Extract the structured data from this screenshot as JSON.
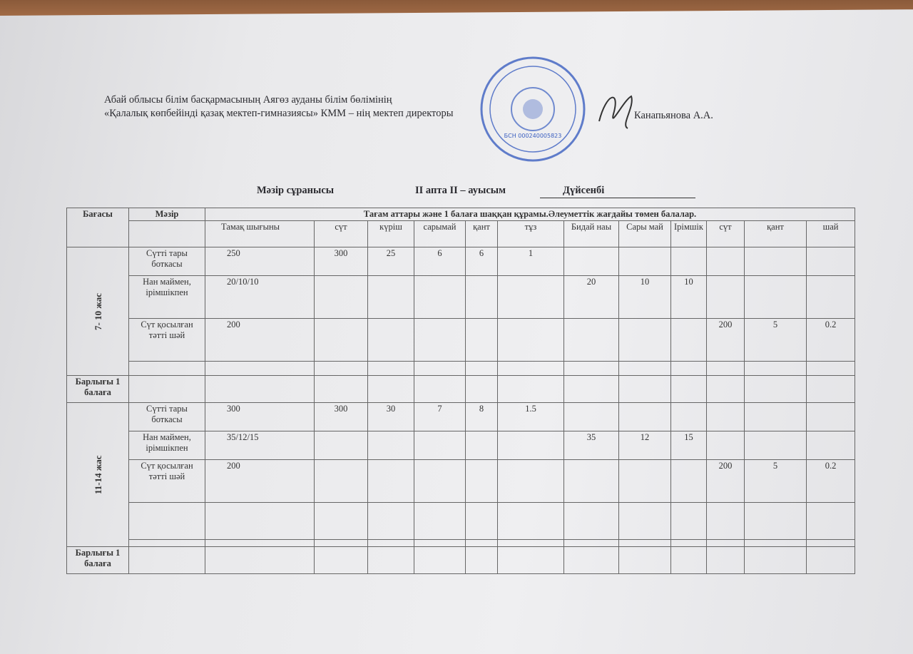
{
  "header": {
    "org_line1": "Абай облысы білім басқармасының Аягөз ауданы білім бөлімінің",
    "org_line2": "«Қалалық көпбейінді қазақ мектеп-гимназиясы» КММ – нің мектеп директоры",
    "director_name": "Канапьянова А.А.",
    "menu_title": "Мәзір сұранысы",
    "week_shift": "II апта    II – ауысым",
    "day": "Дүйсенбі",
    "stamp_text": "БСН 000240005823"
  },
  "table": {
    "col_price": "Бағасы",
    "col_menu": "Мәзір",
    "group_header": "Тағам аттары және 1  балаға шаққан құрамы.Әлеуметтік жағдайы төмен балалар.",
    "subheaders": [
      "Тамақ шығыны",
      "сүт",
      "күріш",
      "сарымай",
      "қант",
      "тұз",
      "Бидай наы",
      "Сары май",
      "Ірімшік",
      "сүт",
      "қант",
      "шай"
    ],
    "total_label": "Барлығы 1 балаға",
    "groups": [
      {
        "age": "7- 10 жас",
        "rows": [
          {
            "dish": "Сүтті  тары боткасы",
            "values": [
              "250",
              "300",
              "25",
              "6",
              "6",
              "1",
              "",
              "",
              "",
              "",
              "",
              ""
            ]
          },
          {
            "dish": "Нан маймен, ірімшікпен",
            "values": [
              "20/10/10",
              "",
              "",
              "",
              "",
              "",
              "20",
              "10",
              "10",
              "",
              "",
              ""
            ]
          },
          {
            "dish": "Сүт қосылған тәтті шәй",
            "values": [
              "200",
              "",
              "",
              "",
              "",
              "",
              "",
              "",
              "",
              "200",
              "5",
              "0.2"
            ]
          },
          {
            "dish": "",
            "values": [
              "",
              "",
              "",
              "",
              "",
              "",
              "",
              "",
              "",
              "",
              "",
              ""
            ]
          }
        ]
      },
      {
        "age": "11-14 жас",
        "rows": [
          {
            "dish": "Сүтті тары боткасы",
            "values": [
              "300",
              "300",
              "30",
              "7",
              "8",
              "1.5",
              "",
              "",
              "",
              "",
              "",
              ""
            ]
          },
          {
            "dish": "Нан маймен, ірімшікпен",
            "values": [
              "35/12/15",
              "",
              "",
              "",
              "",
              "",
              "35",
              "12",
              "15",
              "",
              "",
              ""
            ]
          },
          {
            "dish": "Сүт қосылған тәтті шәй",
            "values": [
              "200",
              "",
              "",
              "",
              "",
              "",
              "",
              "",
              "",
              "200",
              "5",
              "0.2"
            ]
          },
          {
            "dish": "",
            "values": [
              "",
              "",
              "",
              "",
              "",
              "",
              "",
              "",
              "",
              "",
              "",
              ""
            ]
          },
          {
            "dish": "",
            "values": [
              "",
              "",
              "",
              "",
              "",
              "",
              "",
              "",
              "",
              "",
              "",
              ""
            ]
          }
        ]
      }
    ]
  }
}
